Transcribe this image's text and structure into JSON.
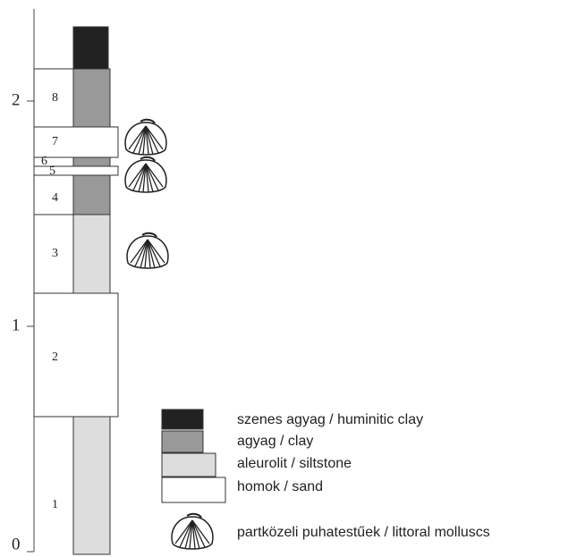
{
  "axis": {
    "labels": [
      "0",
      "1",
      "2"
    ]
  },
  "layers": [
    "1",
    "2",
    "3",
    "4",
    "5",
    "6",
    "7",
    "8"
  ],
  "legend": {
    "items": [
      "szenes agyag / huminitic clay",
      "agyag / clay",
      "aleurolit / siltstone",
      "homok / sand",
      "partközeli puhatestűek / littoral molluscs"
    ]
  }
}
